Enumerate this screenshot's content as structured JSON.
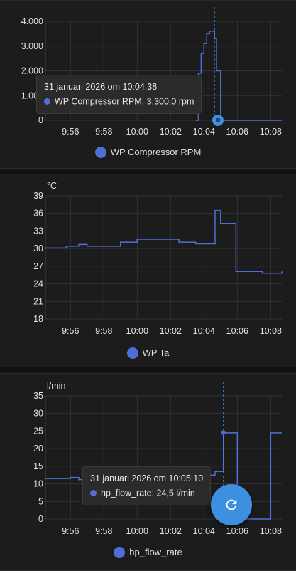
{
  "charts": [
    {
      "id": "rpm",
      "legend": "WP Compressor RPM",
      "unit": "",
      "y_ticks": [
        "4.000",
        "3.000",
        "2.000",
        "1.000",
        "0"
      ],
      "x_ticks": [
        "9:56",
        "9:58",
        "10:00",
        "10:02",
        "10:04",
        "10:06",
        "10:08"
      ],
      "tooltip": {
        "time": "31 januari 2026 om 10:04:38",
        "text": "WP Compressor RPM: 3.300,0 rpm"
      }
    },
    {
      "id": "ta",
      "legend": "WP Ta",
      "unit": "°C",
      "y_ticks": [
        "39",
        "36",
        "33",
        "30",
        "27",
        "24",
        "21",
        "18"
      ],
      "x_ticks": [
        "9:56",
        "9:58",
        "10:00",
        "10:02",
        "10:04",
        "10:06",
        "10:08"
      ]
    },
    {
      "id": "flow",
      "legend": "hp_flow_rate",
      "unit": "l/min",
      "y_ticks": [
        "35",
        "30",
        "25",
        "20",
        "15",
        "10",
        "5",
        "0"
      ],
      "x_ticks": [
        "9:56",
        "9:58",
        "10:00",
        "10:02",
        "10:04",
        "10:06",
        "10:08"
      ],
      "tooltip": {
        "time": "31 januari 2026 om 10:05:10",
        "text": "hp_flow_rate: 24,5 l/min"
      }
    }
  ],
  "chart_data": [
    {
      "type": "line",
      "x_unit": "time",
      "x": [
        "10:03:30",
        "10:03:40",
        "10:03:50",
        "10:04:00",
        "10:04:10",
        "10:04:20",
        "10:04:30",
        "10:04:38",
        "10:04:45",
        "10:05:00",
        "10:08:40"
      ],
      "series": [
        {
          "name": "WP Compressor RPM",
          "values": [
            0,
            1900,
            2700,
            3100,
            3500,
            3600,
            3600,
            3300,
            2000,
            0,
            0
          ]
        }
      ],
      "xlim": [
        "09:54:30",
        "10:08:40"
      ],
      "ylim": [
        0,
        4000
      ],
      "grid": true,
      "legend": "bottom",
      "color": "#4f6fd6"
    },
    {
      "type": "line",
      "x_unit": "time",
      "x": [
        "09:54:30",
        "09:55:45",
        "09:56:30",
        "09:57:00",
        "09:59:00",
        "10:00:00",
        "10:02:30",
        "10:03:30",
        "10:04:40",
        "10:05:00",
        "10:05:55",
        "10:07:30",
        "10:08:40"
      ],
      "series": [
        {
          "name": "WP Ta",
          "values": [
            30.1,
            30.4,
            30.7,
            30.4,
            31.1,
            31.6,
            31.1,
            30.8,
            36.5,
            34.3,
            26.1,
            25.8,
            26.1
          ]
        }
      ],
      "xlim": [
        "09:54:30",
        "10:08:40"
      ],
      "ylim": [
        18,
        39
      ],
      "y_unit": "°C",
      "grid": true,
      "legend": "bottom",
      "color": "#4f6fd6"
    },
    {
      "type": "line",
      "x_unit": "time",
      "x": [
        "09:54:30",
        "09:56:00",
        "09:56:30",
        "09:58:00",
        "09:59:00",
        "10:00:00",
        "10:02:00",
        "10:04:00",
        "10:04:40",
        "10:05:10",
        "10:06:00",
        "10:07:30",
        "10:08:00",
        "10:08:40"
      ],
      "series": [
        {
          "name": "hp_flow_rate",
          "values": [
            11.5,
            11.8,
            11.2,
            11.5,
            11.8,
            11.5,
            12.0,
            12.5,
            13.5,
            24.5,
            0,
            0,
            24.5,
            24.5
          ]
        }
      ],
      "xlim": [
        "09:54:30",
        "10:08:40"
      ],
      "ylim": [
        0,
        35
      ],
      "y_unit": "l/min",
      "grid": true,
      "legend": "bottom",
      "color": "#4f6fd6"
    }
  ],
  "icons": {
    "refresh": "refresh-icon",
    "handle": "drag-handle-icon"
  },
  "colors": {
    "series": "#4f6fd6",
    "accent": "#3d8fe0",
    "background": "#111111",
    "card": "#1c1c1c",
    "grid": "#333333"
  }
}
